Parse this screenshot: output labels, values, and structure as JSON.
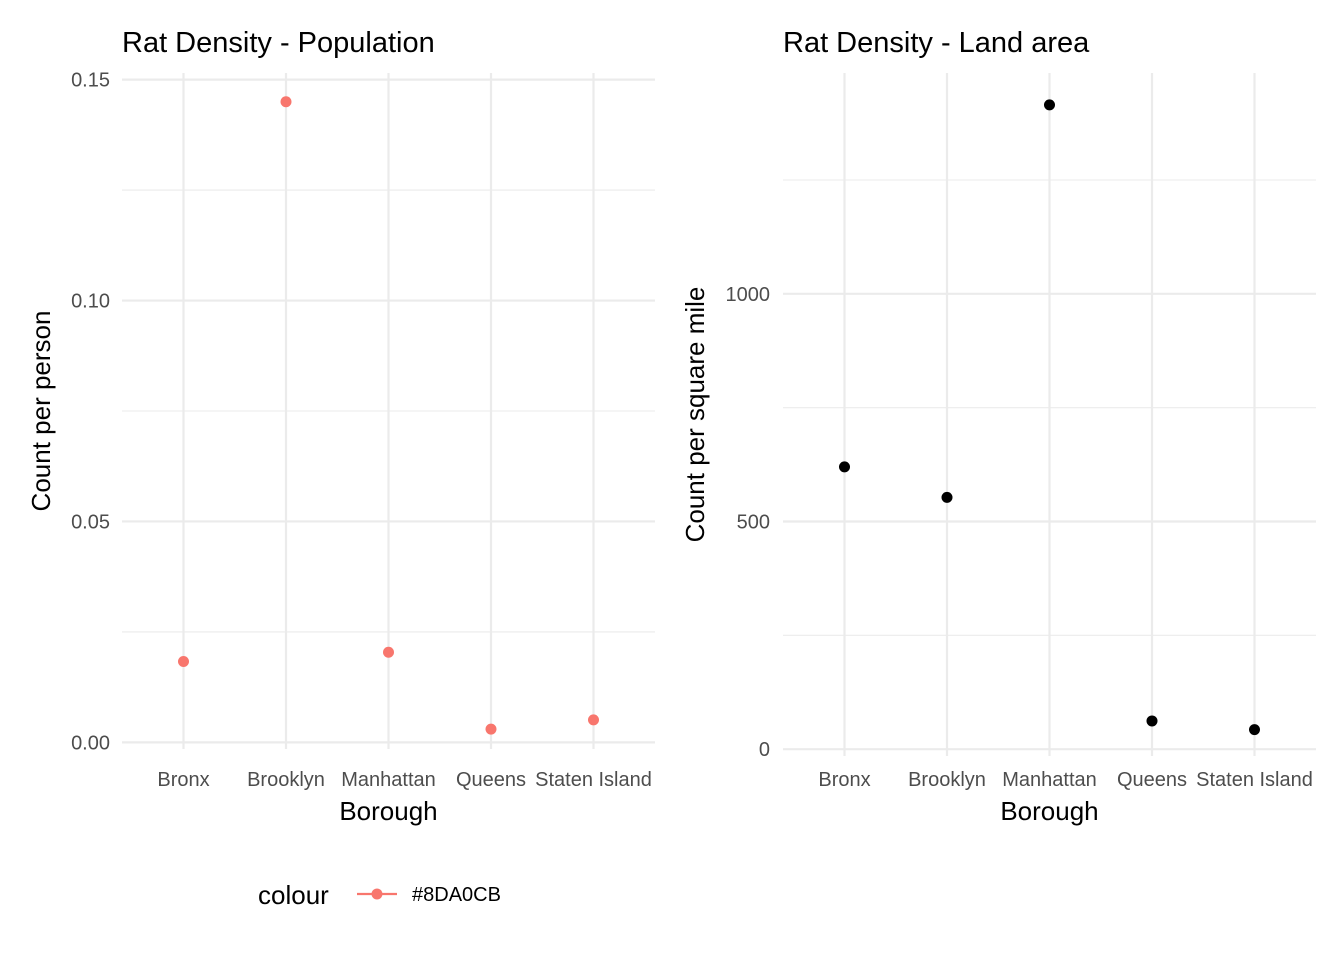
{
  "chart_data": [
    {
      "type": "scatter",
      "title": "Rat Density - Population",
      "xlabel": "Borough",
      "ylabel": "Count per person",
      "categories": [
        "Bronx",
        "Brooklyn",
        "Manhattan",
        "Queens",
        "Staten Island"
      ],
      "values": [
        0.0183,
        0.145,
        0.0204,
        0.003,
        0.0051
      ],
      "ylim": [
        -0.0015,
        0.1515
      ],
      "y_ticks": [
        0.0,
        0.05,
        0.1,
        0.15
      ],
      "y_tick_labels": [
        "0.00",
        "0.05",
        "0.10",
        "0.15"
      ],
      "point_color": "#F8766D",
      "grid": true
    },
    {
      "type": "scatter",
      "title": "Rat Density - Land area",
      "xlabel": "Borough",
      "ylabel": "Count per square mile",
      "categories": [
        "Bronx",
        "Brooklyn",
        "Manhattan",
        "Queens",
        "Staten Island"
      ],
      "values": [
        620,
        553,
        1415,
        62,
        43
      ],
      "ylim": [
        -15,
        1485
      ],
      "y_ticks": [
        0,
        500,
        1000
      ],
      "y_tick_labels": [
        "0",
        "500",
        "1000"
      ],
      "point_color": "#000000",
      "grid": true
    }
  ],
  "legend": {
    "title": "colour",
    "label": "#8DA0CB",
    "color": "#F8766D",
    "placement": "bottom"
  }
}
